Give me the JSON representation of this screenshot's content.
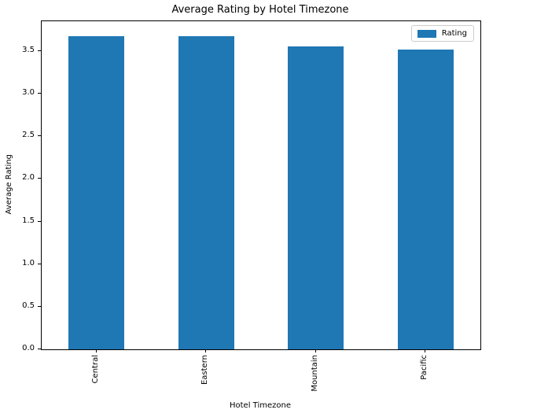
{
  "chart_data": {
    "type": "bar",
    "title": "Average Rating by Hotel Timezone",
    "xlabel": "Hotel Timezone",
    "ylabel": "Average Rating",
    "categories": [
      "Central",
      "Eastern",
      "Mountain",
      "Pacific"
    ],
    "series": [
      {
        "name": "Rating",
        "values": [
          3.67,
          3.67,
          3.55,
          3.52
        ],
        "color": "#1f77b4"
      }
    ],
    "ylim": [
      0,
      3.85
    ],
    "yticks": [
      0.0,
      0.5,
      1.0,
      1.5,
      2.0,
      2.5,
      3.0,
      3.5
    ],
    "ytick_decimals": 1,
    "xtick_rotation": 90,
    "grid": false,
    "legend": {
      "position": "upper right",
      "entries": [
        {
          "label": "Rating",
          "color": "#1f77b4"
        }
      ]
    },
    "colors": {
      "bar": "#1f77b4",
      "spine": "#000000",
      "text": "#000000",
      "legend_border": "#cccccc",
      "background": "#ffffff"
    }
  }
}
